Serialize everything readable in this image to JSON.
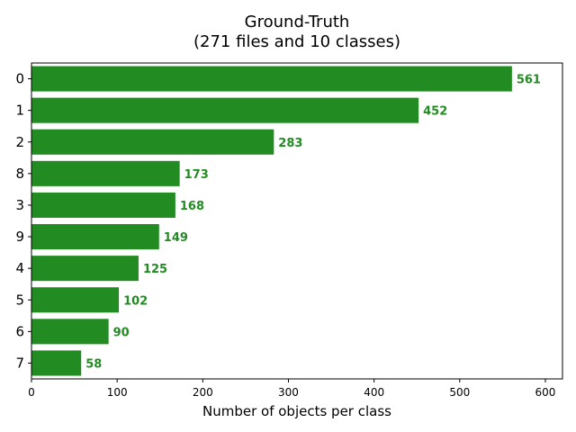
{
  "chart_data": {
    "type": "bar",
    "orientation": "horizontal",
    "title": "Ground-Truth",
    "subtitle": "(271 files and 10 classes)",
    "xlabel": "Number of objects per class",
    "ylabel": "",
    "categories": [
      "0",
      "1",
      "2",
      "8",
      "3",
      "9",
      "4",
      "5",
      "6",
      "7"
    ],
    "values": [
      561,
      452,
      283,
      173,
      168,
      149,
      125,
      102,
      90,
      58
    ],
    "xlim": [
      0,
      620
    ],
    "xticks": [
      0,
      100,
      200,
      300,
      400,
      500,
      600
    ],
    "bar_color": "#228b22",
    "label_color": "#228b22",
    "grid": false,
    "legend": "none"
  }
}
